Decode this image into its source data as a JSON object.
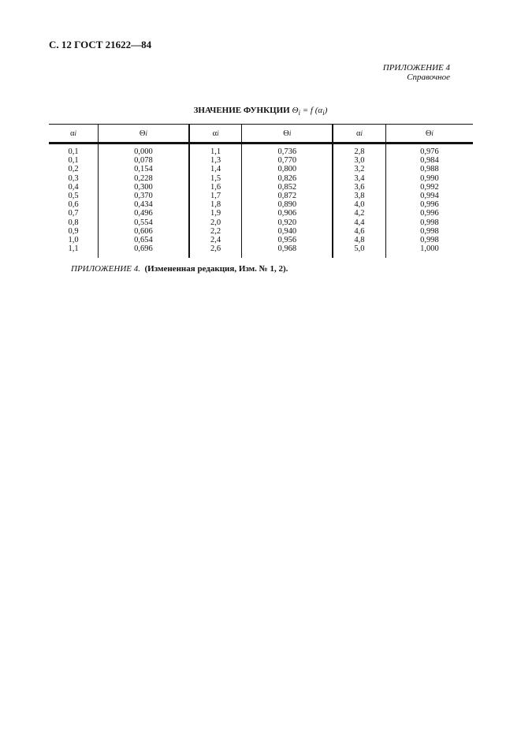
{
  "header": {
    "page_ref": "С. 12 ГОСТ 21622—84"
  },
  "appendix": {
    "label": "ПРИЛОЖЕНИЕ 4",
    "type": "Справочное"
  },
  "table": {
    "title": "ЗНАЧЕНИЕ ФУНКЦИИ",
    "formula": "Θ",
    "formula_sub": "i",
    "formula_rest": " = f (α",
    "formula_sub2": "i",
    "formula_end": ")",
    "headers": [
      [
        "α",
        "i"
      ],
      [
        "Θ",
        "i"
      ],
      [
        "α",
        "i"
      ],
      [
        "Θ",
        "i"
      ],
      [
        "α",
        "i"
      ],
      [
        "Θ",
        "i"
      ]
    ],
    "rows": [
      [
        "0,1",
        "0,000",
        "1,1",
        "0,736",
        "2,8",
        "0,976"
      ],
      [
        "0,1",
        "0,078",
        "1,3",
        "0,770",
        "3,0",
        "0,984"
      ],
      [
        "0,2",
        "0,154",
        "1,4",
        "0,800",
        "3,2",
        "0,988"
      ],
      [
        "0,3",
        "0,228",
        "1,5",
        "0,826",
        "3,4",
        "0,990"
      ],
      [
        "0,4",
        "0,300",
        "1,6",
        "0,852",
        "3,6",
        "0,992"
      ],
      [
        "0,5",
        "0,370",
        "1,7",
        "0,872",
        "3,8",
        "0,994"
      ],
      [
        "0,6",
        "0,434",
        "1,8",
        "0,890",
        "4,0",
        "0,996"
      ],
      [
        "0,7",
        "0,496",
        "1,9",
        "0,906",
        "4,2",
        "0,996"
      ],
      [
        "0,8",
        "0,554",
        "2,0",
        "0,920",
        "4,4",
        "0,998"
      ],
      [
        "0,9",
        "0,606",
        "2,2",
        "0,940",
        "4,6",
        "0,998"
      ],
      [
        "1,0",
        "0,654",
        "2,4",
        "0,956",
        "4,8",
        "0,998"
      ],
      [
        "1,1",
        "0,696",
        "2,6",
        "0,968",
        "5,0",
        "1,000"
      ]
    ]
  },
  "note": {
    "label": "ПРИЛОЖЕНИЕ 4.",
    "text": "(Измененная редакция, Изм. № 1, 2)."
  }
}
